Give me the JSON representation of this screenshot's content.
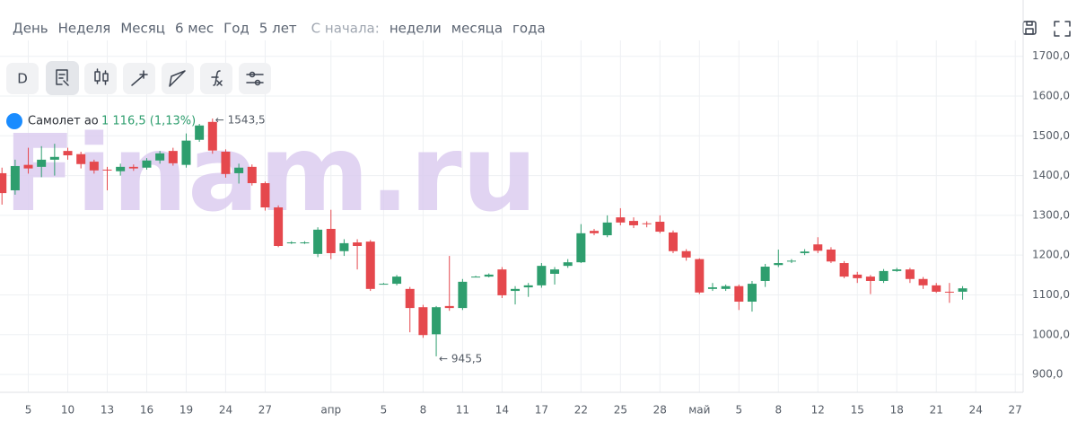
{
  "periods": [
    "День",
    "Неделя",
    "Месяц",
    "6 мес",
    "Год",
    "5 лет"
  ],
  "since_label": "С начала:",
  "since_options": [
    "недели",
    "месяца",
    "года"
  ],
  "interval_button": "D",
  "watermark": "Finam.ru",
  "legend": {
    "name": "Самолет ао",
    "quote": "1 116,5 (1,13%)"
  },
  "chart_data": {
    "type": "candlestick",
    "up_color": "#2e9e6e",
    "down_color": "#e5484d",
    "grid": true,
    "open": [
      1406,
      1363,
      1427,
      1422,
      1440,
      1462,
      1454,
      1435,
      1415,
      1411,
      1422,
      1420,
      1438,
      1462,
      1427,
      1490,
      1535,
      1460,
      1406,
      1422,
      1381,
      1320,
      1232,
      1232,
      1203,
      1266,
      1210,
      1232,
      1234,
      1128,
      1128,
      1115,
      1069,
      1001,
      1072,
      1067,
      1146,
      1146,
      1164,
      1110,
      1119,
      1124,
      1153,
      1173,
      1182,
      1261,
      1250,
      1295,
      1286,
      1280,
      1284,
      1257,
      1210,
      1190,
      1115,
      1115,
      1122,
      1083,
      1135,
      1175,
      1184,
      1205,
      1227,
      1214,
      1180,
      1151,
      1146,
      1135,
      1160,
      1164,
      1140,
      1124,
      1108,
      1108
    ],
    "high": [
      1420,
      1440,
      1470,
      1474,
      1480,
      1470,
      1460,
      1440,
      1422,
      1430,
      1428,
      1444,
      1462,
      1470,
      1506,
      1530,
      1543.5,
      1466,
      1430,
      1428,
      1385,
      1325,
      1235,
      1235,
      1270,
      1314,
      1240,
      1240,
      1238,
      1130,
      1150,
      1120,
      1075,
      1072,
      1198,
      1140,
      1148,
      1154,
      1170,
      1122,
      1130,
      1180,
      1170,
      1190,
      1278,
      1266,
      1300,
      1318,
      1295,
      1285,
      1300,
      1262,
      1215,
      1192,
      1130,
      1126,
      1126,
      1135,
      1178,
      1214,
      1190,
      1215,
      1245,
      1220,
      1185,
      1158,
      1150,
      1165,
      1168,
      1168,
      1145,
      1130,
      1130,
      1122
    ],
    "low": [
      1327,
      1352,
      1405,
      1396,
      1400,
      1440,
      1418,
      1405,
      1363,
      1400,
      1412,
      1415,
      1430,
      1425,
      1420,
      1485,
      1455,
      1395,
      1380,
      1375,
      1312,
      1220,
      1228,
      1228,
      1195,
      1190,
      1198,
      1164,
      1110,
      1126,
      1124,
      1006,
      992,
      945.5,
      1060,
      1062,
      1144,
      1144,
      1092,
      1076,
      1095,
      1118,
      1126,
      1168,
      1180,
      1250,
      1245,
      1275,
      1268,
      1270,
      1255,
      1205,
      1186,
      1102,
      1110,
      1110,
      1062,
      1058,
      1120,
      1170,
      1180,
      1200,
      1205,
      1180,
      1142,
      1130,
      1102,
      1130,
      1158,
      1130,
      1115,
      1105,
      1080,
      1088
    ],
    "close": [
      1356,
      1424,
      1418,
      1440,
      1447,
      1451,
      1429,
      1413,
      1413,
      1422,
      1418,
      1438,
      1456,
      1431,
      1488,
      1526,
      1463,
      1404,
      1420,
      1381,
      1320,
      1223,
      1232,
      1232,
      1264,
      1205,
      1230,
      1223,
      1115,
      1128,
      1146,
      1067,
      999,
      1069,
      1067,
      1133,
      1146,
      1151,
      1099,
      1115,
      1124,
      1173,
      1164,
      1182,
      1255,
      1255,
      1282,
      1282,
      1275,
      1278,
      1259,
      1210,
      1194,
      1106,
      1119,
      1122,
      1083,
      1128,
      1171,
      1180,
      1186,
      1209,
      1211,
      1184,
      1146,
      1142,
      1135,
      1160,
      1164,
      1140,
      1124,
      1108,
      1106,
      1116.5
    ],
    "annotations": [
      {
        "label": "← 1543,5",
        "value": 1543.5
      },
      {
        "label": "← 945,5",
        "value": 945.5
      }
    ],
    "xlim": [
      -0.15,
      77.6
    ],
    "xticks": [
      {
        "value": 2,
        "label": "5"
      },
      {
        "value": 5,
        "label": "10"
      },
      {
        "value": 8,
        "label": "13"
      },
      {
        "value": 11,
        "label": "16"
      },
      {
        "value": 14,
        "label": "19"
      },
      {
        "value": 17,
        "label": "24"
      },
      {
        "value": 20,
        "label": "27"
      },
      {
        "value": 25,
        "label": "апр"
      },
      {
        "value": 29,
        "label": "5"
      },
      {
        "value": 32,
        "label": "8"
      },
      {
        "value": 35,
        "label": "11"
      },
      {
        "value": 38,
        "label": "14"
      },
      {
        "value": 41,
        "label": "17"
      },
      {
        "value": 44,
        "label": "22"
      },
      {
        "value": 47,
        "label": "25"
      },
      {
        "value": 50,
        "label": "28"
      },
      {
        "value": 53,
        "label": "май"
      },
      {
        "value": 56,
        "label": "5"
      },
      {
        "value": 59,
        "label": "8"
      },
      {
        "value": 62,
        "label": "12"
      },
      {
        "value": 65,
        "label": "15"
      },
      {
        "value": 68,
        "label": "18"
      },
      {
        "value": 71,
        "label": "21"
      },
      {
        "value": 74,
        "label": "24"
      },
      {
        "value": 77,
        "label": "27"
      }
    ],
    "ylim": [
      855,
      1740
    ],
    "yticks": [
      {
        "value": 900,
        "label": "900,0"
      },
      {
        "value": 1000,
        "label": "1000,0"
      },
      {
        "value": 1100,
        "label": "1100,0"
      },
      {
        "value": 1200,
        "label": "1200,0"
      },
      {
        "value": 1300,
        "label": "1300,0"
      },
      {
        "value": 1400,
        "label": "1400,0"
      },
      {
        "value": 1500,
        "label": "1500,0"
      },
      {
        "value": 1600,
        "label": "1600,0"
      },
      {
        "value": 1700,
        "label": "1700,0"
      }
    ]
  }
}
